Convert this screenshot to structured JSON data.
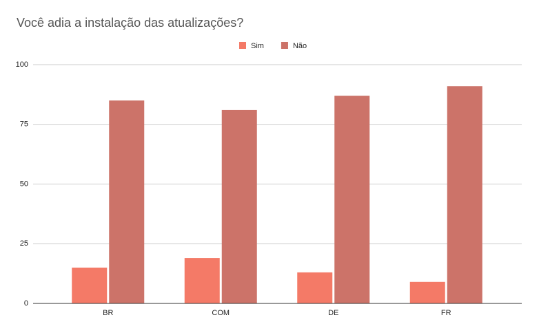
{
  "chart_data": {
    "type": "bar",
    "title": "Você adia a instalação das atualizações?",
    "categories": [
      "BR",
      "COM",
      "DE",
      "FR"
    ],
    "series": [
      {
        "name": "Sim",
        "color": "#f47a67",
        "values": [
          15,
          19,
          13,
          9
        ]
      },
      {
        "name": "Não",
        "color": "#cc7369",
        "values": [
          85,
          81,
          87,
          91
        ]
      }
    ],
    "ylim": [
      0,
      100
    ],
    "yticks": [
      0,
      25,
      50,
      75,
      100
    ],
    "grid": true,
    "legend": "top"
  }
}
